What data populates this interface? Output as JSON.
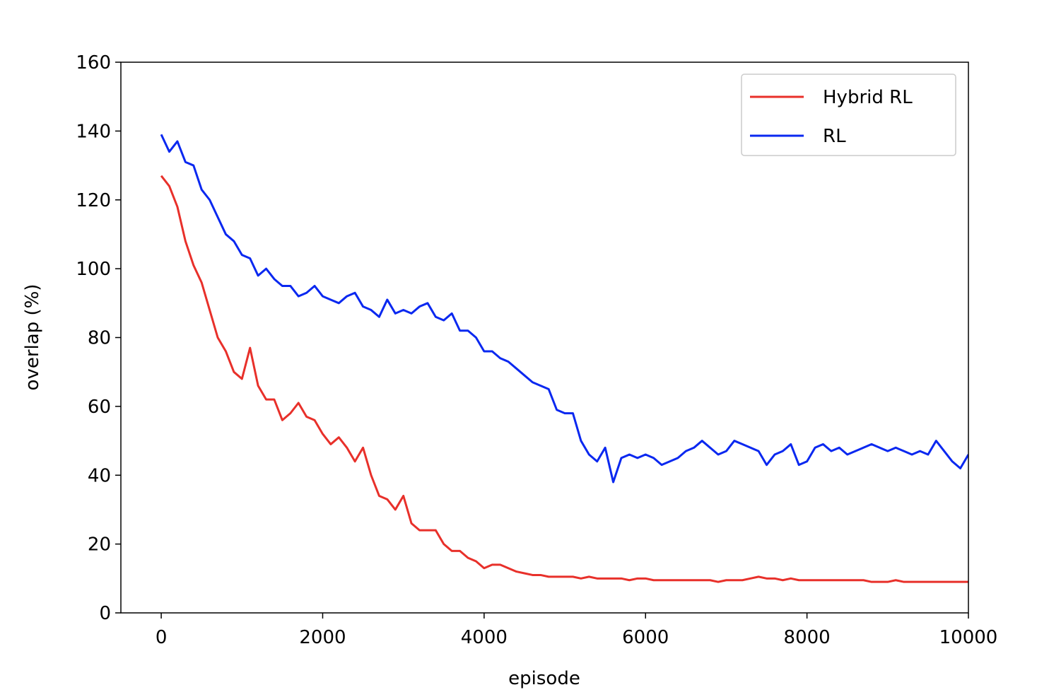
{
  "chart_data": {
    "type": "line",
    "xlabel": "episode",
    "ylabel": "overlap (%)",
    "x": [
      0,
      100,
      200,
      300,
      400,
      500,
      600,
      700,
      800,
      900,
      1000,
      1100,
      1200,
      1300,
      1400,
      1500,
      1600,
      1700,
      1800,
      1900,
      2000,
      2100,
      2200,
      2300,
      2400,
      2500,
      2600,
      2700,
      2800,
      2900,
      3000,
      3100,
      3200,
      3300,
      3400,
      3500,
      3600,
      3700,
      3800,
      3900,
      4000,
      4100,
      4200,
      4300,
      4400,
      4500,
      4600,
      4700,
      4800,
      4900,
      5000,
      5100,
      5200,
      5300,
      5400,
      5500,
      5600,
      5700,
      5800,
      5900,
      6000,
      6100,
      6200,
      6300,
      6400,
      6500,
      6600,
      6700,
      6800,
      6900,
      7000,
      7100,
      7200,
      7300,
      7400,
      7500,
      7600,
      7700,
      7800,
      7900,
      8000,
      8100,
      8200,
      8300,
      8400,
      8500,
      8600,
      8700,
      8800,
      8900,
      9000,
      9100,
      9200,
      9300,
      9400,
      9500,
      9600,
      9700,
      9800,
      9900,
      10000
    ],
    "series": [
      {
        "name": "Hybrid RL",
        "color": "#e8302a",
        "values": [
          127,
          124,
          118,
          108,
          101,
          96,
          88,
          80,
          76,
          70,
          68,
          77,
          66,
          62,
          62,
          56,
          58,
          61,
          57,
          56,
          52,
          49,
          51,
          48,
          44,
          48,
          40,
          34,
          33,
          30,
          34,
          26,
          24,
          24,
          24,
          20,
          18,
          18,
          16,
          15,
          13,
          14,
          14,
          13,
          12,
          11.5,
          11,
          11,
          10.5,
          10.5,
          10.5,
          10.5,
          10,
          10.5,
          10,
          10,
          10,
          10,
          9.5,
          10,
          10,
          9.5,
          9.5,
          9.5,
          9.5,
          9.5,
          9.5,
          9.5,
          9.5,
          9,
          9.5,
          9.5,
          9.5,
          10,
          10.5,
          10,
          10,
          9.5,
          10,
          9.5,
          9.5,
          9.5,
          9.5,
          9.5,
          9.5,
          9.5,
          9.5,
          9.5,
          9,
          9,
          9,
          9.5,
          9,
          9,
          9,
          9,
          9,
          9,
          9,
          9,
          9
        ]
      },
      {
        "name": "RL",
        "color": "#0a28f0",
        "values": [
          139,
          134,
          137,
          131,
          130,
          123,
          120,
          115,
          110,
          108,
          104,
          103,
          98,
          100,
          97,
          95,
          95,
          92,
          93,
          95,
          92,
          91,
          90,
          92,
          93,
          89,
          88,
          86,
          91,
          87,
          88,
          87,
          89,
          90,
          86,
          85,
          87,
          82,
          82,
          80,
          76,
          76,
          74,
          73,
          71,
          69,
          67,
          66,
          65,
          59,
          58,
          58,
          50,
          46,
          44,
          48,
          38,
          45,
          46,
          45,
          46,
          45,
          43,
          44,
          45,
          47,
          48,
          50,
          48,
          46,
          47,
          50,
          49,
          48,
          47,
          43,
          46,
          47,
          49,
          43,
          44,
          48,
          49,
          47,
          48,
          46,
          47,
          48,
          49,
          48,
          47,
          48,
          47,
          46,
          47,
          46,
          50,
          47,
          44,
          42,
          46
        ]
      }
    ],
    "xlim": [
      -500,
      10000
    ],
    "xticks": [
      0,
      2000,
      4000,
      6000,
      8000,
      10000
    ],
    "ylim": [
      0,
      160
    ],
    "yticks": [
      0,
      20,
      40,
      60,
      80,
      100,
      120,
      140,
      160
    ],
    "legend": "upper right"
  }
}
